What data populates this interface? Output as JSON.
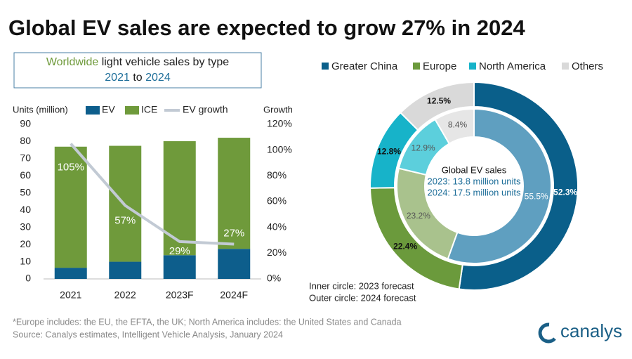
{
  "title": "Global EV sales are expected to grow 27% in 2024",
  "chart_data": [
    {
      "type": "bar",
      "stacked": true,
      "subtitle_parts": [
        "Worldwide",
        "light vehicle sales by type",
        "2021",
        "to",
        "2024"
      ],
      "ylabel": "Units (million)",
      "y2label": "Growth",
      "categories": [
        "2021",
        "2022",
        "2023F",
        "2024F"
      ],
      "series": [
        {
          "name": "EV",
          "color": "#0d5e8c",
          "values": [
            6.5,
            10,
            13.8,
            17.5
          ]
        },
        {
          "name": "ICE",
          "color": "#6f9a3b",
          "values": [
            70.5,
            67.5,
            66.4,
            64.7
          ]
        },
        {
          "name": "EV growth",
          "color": "#c2cad4",
          "type": "line",
          "axis": "y2",
          "values": [
            105,
            57,
            29,
            27
          ],
          "value_labels": [
            "105%",
            "57%",
            "29%",
            "27%"
          ]
        }
      ],
      "ylim": [
        0,
        90
      ],
      "yticks": [
        0,
        10,
        20,
        30,
        40,
        50,
        60,
        70,
        80,
        90
      ],
      "y2lim": [
        0,
        120
      ],
      "y2ticks": [
        {
          "value": 0,
          "label": "0%"
        },
        {
          "value": 20,
          "label": "20%"
        },
        {
          "value": 40,
          "label": "40%"
        },
        {
          "value": 60,
          "label": "60%"
        },
        {
          "value": 80,
          "label": "80%"
        },
        {
          "value": 100,
          "label": "100%"
        },
        {
          "value": 120,
          "label": "120%"
        }
      ],
      "grid": false
    },
    {
      "type": "donut",
      "categories": [
        "Greater China",
        "Europe",
        "North America",
        "Others"
      ],
      "center_text": [
        "Global EV sales",
        "2023: 13.8 million units",
        "2024: 17.5 million units"
      ],
      "series": [
        {
          "name": "Inner circle: 2023 forecast",
          "values": [
            55.5,
            23.2,
            12.9,
            8.4
          ],
          "value_labels": [
            "55.5%",
            "23.2%",
            "12.9%",
            "8.4%"
          ],
          "colors": [
            "#5f9fc0",
            "#a9c28d",
            "#5ccfdc",
            "#e6e6e6"
          ]
        },
        {
          "name": "Outer circle: 2024 forecast",
          "values": [
            52.3,
            22.4,
            12.8,
            12.5
          ],
          "value_labels": [
            "52.3%",
            "22.4%",
            "12.8%",
            "12.5%"
          ],
          "colors": [
            "#0a5f8a",
            "#6b9a3c",
            "#17b3c9",
            "#d9d9d9"
          ]
        }
      ]
    }
  ],
  "footnote": "*Europe includes: the EU, the EFTA, the UK; North America includes: the United States and Canada",
  "source": "Source: Canalys estimates, Intelligent Vehicle Analysis, January 2024",
  "logo": "canalys"
}
